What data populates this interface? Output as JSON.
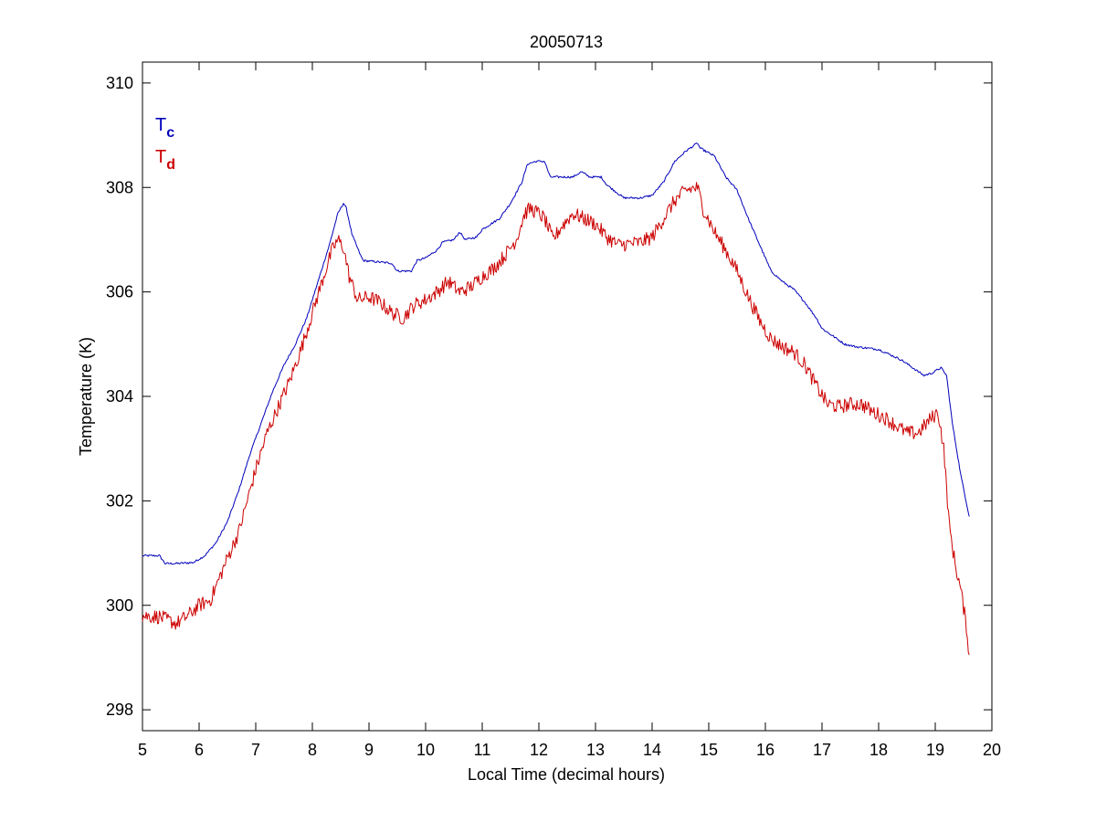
{
  "chart_data": {
    "type": "line",
    "title": "20050713",
    "xlabel": "Local Time (decimal hours)",
    "ylabel": "Temperature (K)",
    "xlim": [
      5,
      20
    ],
    "ylim": [
      297.6,
      310.4
    ],
    "xticks": [
      5,
      6,
      7,
      8,
      9,
      10,
      11,
      12,
      13,
      14,
      15,
      16,
      17,
      18,
      19,
      20
    ],
    "yticks": [
      298,
      300,
      302,
      304,
      306,
      308,
      310
    ],
    "grid": false,
    "legend": {
      "placement": "top-left",
      "entries": [
        {
          "base": "T",
          "sub": "c",
          "color": "#0000bb"
        },
        {
          "base": "T",
          "sub": "d",
          "color": "#cc0000"
        }
      ]
    },
    "series": [
      {
        "color": "#0000bb",
        "noise": 0.02,
        "points": [
          [
            5.0,
            300.95
          ],
          [
            5.3,
            300.95
          ],
          [
            5.4,
            300.8
          ],
          [
            5.6,
            300.8
          ],
          [
            5.9,
            300.82
          ],
          [
            6.1,
            300.95
          ],
          [
            6.3,
            301.2
          ],
          [
            6.5,
            301.6
          ],
          [
            6.7,
            302.2
          ],
          [
            6.9,
            302.9
          ],
          [
            7.1,
            303.5
          ],
          [
            7.3,
            304.1
          ],
          [
            7.5,
            304.6
          ],
          [
            7.7,
            305.0
          ],
          [
            7.9,
            305.5
          ],
          [
            8.1,
            306.2
          ],
          [
            8.3,
            306.9
          ],
          [
            8.45,
            307.5
          ],
          [
            8.55,
            307.7
          ],
          [
            8.6,
            307.6
          ],
          [
            8.7,
            307.1
          ],
          [
            8.85,
            306.7
          ],
          [
            8.9,
            306.6
          ],
          [
            9.4,
            306.55
          ],
          [
            9.5,
            306.4
          ],
          [
            9.75,
            306.4
          ],
          [
            9.85,
            306.6
          ],
          [
            10.0,
            306.65
          ],
          [
            10.2,
            306.8
          ],
          [
            10.3,
            306.95
          ],
          [
            10.5,
            307.0
          ],
          [
            10.6,
            307.15
          ],
          [
            10.7,
            307.0
          ],
          [
            10.9,
            307.05
          ],
          [
            11.0,
            307.2
          ],
          [
            11.3,
            307.4
          ],
          [
            11.5,
            307.7
          ],
          [
            11.7,
            308.1
          ],
          [
            11.8,
            308.45
          ],
          [
            11.95,
            308.5
          ],
          [
            12.1,
            308.5
          ],
          [
            12.2,
            308.2
          ],
          [
            12.6,
            308.2
          ],
          [
            12.75,
            308.3
          ],
          [
            12.9,
            308.2
          ],
          [
            13.1,
            308.2
          ],
          [
            13.2,
            308.05
          ],
          [
            13.5,
            307.8
          ],
          [
            13.8,
            307.8
          ],
          [
            14.0,
            307.85
          ],
          [
            14.2,
            308.1
          ],
          [
            14.4,
            308.5
          ],
          [
            14.6,
            308.7
          ],
          [
            14.8,
            308.85
          ],
          [
            14.85,
            308.75
          ],
          [
            15.1,
            308.6
          ],
          [
            15.2,
            308.4
          ],
          [
            15.3,
            308.2
          ],
          [
            15.5,
            307.95
          ],
          [
            15.7,
            307.4
          ],
          [
            15.9,
            306.9
          ],
          [
            16.1,
            306.4
          ],
          [
            16.3,
            306.2
          ],
          [
            16.5,
            306.05
          ],
          [
            16.7,
            305.8
          ],
          [
            16.9,
            305.5
          ],
          [
            17.0,
            305.3
          ],
          [
            17.2,
            305.15
          ],
          [
            17.4,
            305.0
          ],
          [
            17.6,
            304.95
          ],
          [
            18.0,
            304.9
          ],
          [
            18.2,
            304.8
          ],
          [
            18.4,
            304.7
          ],
          [
            18.6,
            304.55
          ],
          [
            18.8,
            304.4
          ],
          [
            18.95,
            304.45
          ],
          [
            19.1,
            304.55
          ],
          [
            19.2,
            304.4
          ],
          [
            19.3,
            303.5
          ],
          [
            19.45,
            302.5
          ],
          [
            19.6,
            301.7
          ]
        ]
      },
      {
        "color": "#cc0000",
        "noise": 0.14,
        "points": [
          [
            5.0,
            299.8
          ],
          [
            5.3,
            299.78
          ],
          [
            5.6,
            299.65
          ],
          [
            5.8,
            299.8
          ],
          [
            6.0,
            300.0
          ],
          [
            6.2,
            300.1
          ],
          [
            6.35,
            300.5
          ],
          [
            6.5,
            300.9
          ],
          [
            6.7,
            301.4
          ],
          [
            6.85,
            302.0
          ],
          [
            7.0,
            302.6
          ],
          [
            7.2,
            303.3
          ],
          [
            7.4,
            303.8
          ],
          [
            7.6,
            304.3
          ],
          [
            7.8,
            304.9
          ],
          [
            8.0,
            305.6
          ],
          [
            8.2,
            306.3
          ],
          [
            8.35,
            306.8
          ],
          [
            8.45,
            307.0
          ],
          [
            8.55,
            306.85
          ],
          [
            8.65,
            306.3
          ],
          [
            8.8,
            305.85
          ],
          [
            9.0,
            305.9
          ],
          [
            9.2,
            305.8
          ],
          [
            9.4,
            305.6
          ],
          [
            9.6,
            305.5
          ],
          [
            9.8,
            305.75
          ],
          [
            10.0,
            305.85
          ],
          [
            10.2,
            306.0
          ],
          [
            10.4,
            306.2
          ],
          [
            10.6,
            306.0
          ],
          [
            10.8,
            306.1
          ],
          [
            11.0,
            306.3
          ],
          [
            11.2,
            306.45
          ],
          [
            11.4,
            306.7
          ],
          [
            11.6,
            307.0
          ],
          [
            11.75,
            307.5
          ],
          [
            11.85,
            307.6
          ],
          [
            12.0,
            307.5
          ],
          [
            12.1,
            307.4
          ],
          [
            12.25,
            307.0
          ],
          [
            12.4,
            307.25
          ],
          [
            12.6,
            307.5
          ],
          [
            12.8,
            307.4
          ],
          [
            13.0,
            307.3
          ],
          [
            13.2,
            307.05
          ],
          [
            13.4,
            306.9
          ],
          [
            13.8,
            306.95
          ],
          [
            14.0,
            307.05
          ],
          [
            14.2,
            307.4
          ],
          [
            14.4,
            307.75
          ],
          [
            14.6,
            307.95
          ],
          [
            14.8,
            308.0
          ],
          [
            14.9,
            307.6
          ],
          [
            15.1,
            307.15
          ],
          [
            15.3,
            306.8
          ],
          [
            15.5,
            306.4
          ],
          [
            15.7,
            305.9
          ],
          [
            15.9,
            305.45
          ],
          [
            16.1,
            305.1
          ],
          [
            16.3,
            304.95
          ],
          [
            16.5,
            304.85
          ],
          [
            16.7,
            304.6
          ],
          [
            16.9,
            304.2
          ],
          [
            17.1,
            303.85
          ],
          [
            17.3,
            303.8
          ],
          [
            17.5,
            303.85
          ],
          [
            17.7,
            303.85
          ],
          [
            17.9,
            303.7
          ],
          [
            18.1,
            303.6
          ],
          [
            18.3,
            303.45
          ],
          [
            18.5,
            303.3
          ],
          [
            18.7,
            303.3
          ],
          [
            18.9,
            303.55
          ],
          [
            19.05,
            303.7
          ],
          [
            19.15,
            303.0
          ],
          [
            19.25,
            301.5
          ],
          [
            19.35,
            300.8
          ],
          [
            19.45,
            300.3
          ],
          [
            19.55,
            299.6
          ],
          [
            19.6,
            299.05
          ]
        ]
      }
    ]
  }
}
